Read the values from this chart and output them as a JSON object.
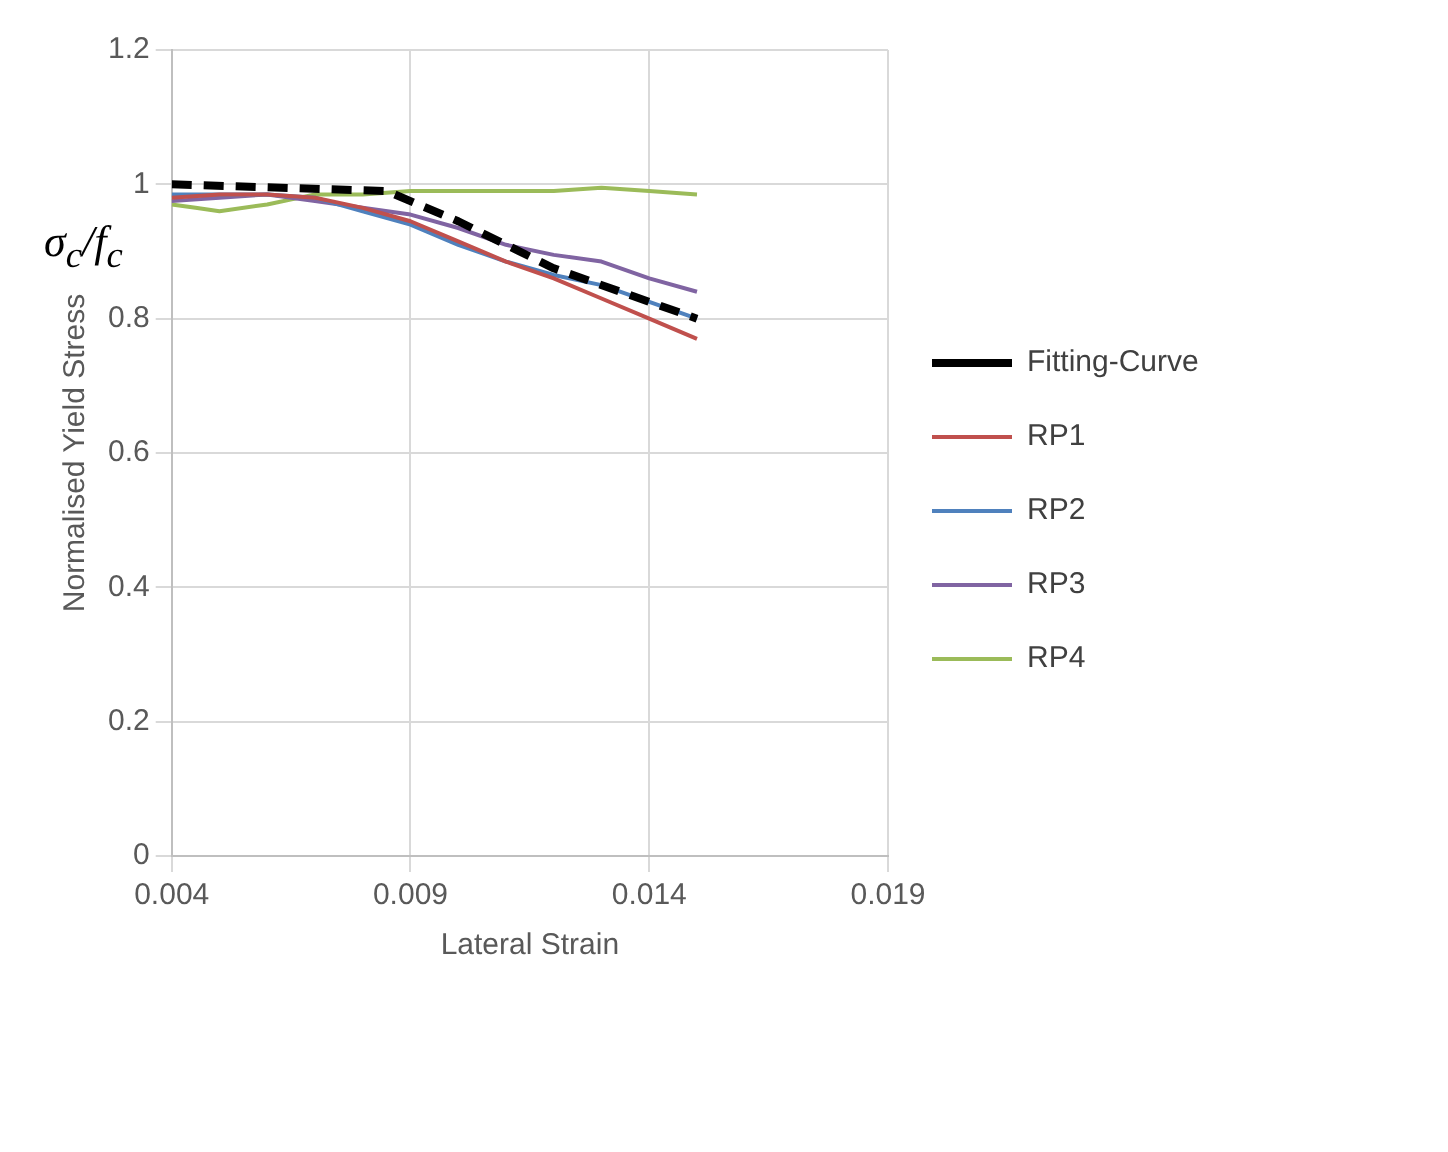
{
  "chart_data": {
    "type": "line",
    "xlabel": "Lateral Strain",
    "ylabel": "Normalised Yield Stress",
    "annotations": [
      "σ$_{c}$/f$_{c}$"
    ],
    "xlim": [
      0.004,
      0.019
    ],
    "xticks": [
      0.004,
      0.009,
      0.014,
      0.019
    ],
    "ylim": [
      0,
      1.2
    ],
    "yticks": [
      0,
      0.2,
      0.4,
      0.6,
      0.8,
      1,
      1.2
    ],
    "grid": true,
    "legend": "right",
    "marker": "none",
    "series": [
      {
        "name": "Fitting-Curve",
        "color": "#000000",
        "line_style": "dashed",
        "x": [
          0.004,
          0.0085,
          0.01,
          0.012,
          0.015
        ],
        "values": [
          1.0,
          0.99,
          0.945,
          0.875,
          0.8
        ]
      },
      {
        "name": "RP1",
        "color": "#c0504d",
        "x": [
          0.004,
          0.005,
          0.006,
          0.007,
          0.008,
          0.009,
          0.01,
          0.011,
          0.012,
          0.013,
          0.014,
          0.015
        ],
        "values": [
          0.98,
          0.985,
          0.985,
          0.98,
          0.965,
          0.945,
          0.915,
          0.885,
          0.86,
          0.83,
          0.8,
          0.77
        ]
      },
      {
        "name": "RP2",
        "color": "#4f81bd",
        "x": [
          0.004,
          0.005,
          0.006,
          0.007,
          0.008,
          0.009,
          0.01,
          0.011,
          0.012,
          0.013,
          0.014,
          0.015
        ],
        "values": [
          0.985,
          0.985,
          0.985,
          0.98,
          0.96,
          0.94,
          0.91,
          0.885,
          0.865,
          0.85,
          0.825,
          0.8
        ]
      },
      {
        "name": "RP3",
        "color": "#8064a2",
        "x": [
          0.004,
          0.005,
          0.006,
          0.007,
          0.008,
          0.009,
          0.01,
          0.011,
          0.012,
          0.013,
          0.014,
          0.015
        ],
        "values": [
          0.975,
          0.98,
          0.985,
          0.975,
          0.965,
          0.955,
          0.935,
          0.91,
          0.895,
          0.885,
          0.86,
          0.84
        ]
      },
      {
        "name": "RP4",
        "color": "#9bbb59",
        "x": [
          0.004,
          0.0045,
          0.005,
          0.006,
          0.007,
          0.008,
          0.009,
          0.01,
          0.011,
          0.012,
          0.013,
          0.014,
          0.015
        ],
        "values": [
          0.97,
          0.965,
          0.96,
          0.97,
          0.985,
          0.985,
          0.99,
          0.99,
          0.99,
          0.99,
          0.995,
          0.99,
          0.985
        ]
      }
    ]
  }
}
